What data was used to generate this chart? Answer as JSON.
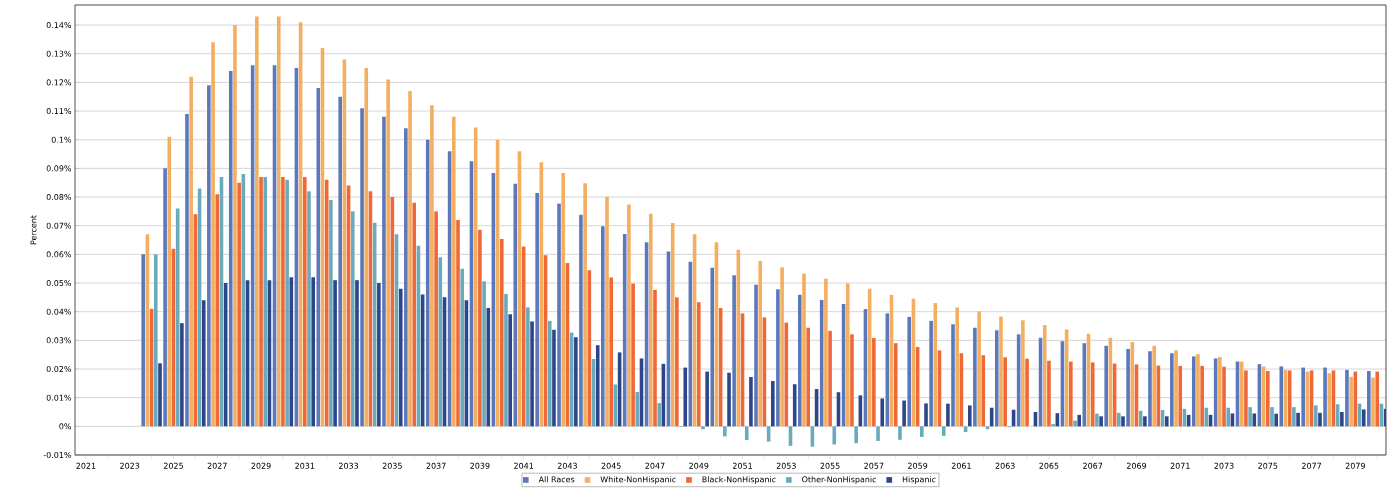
{
  "chart_data": {
    "type": "bar",
    "ylabel": "Percent",
    "categories": [
      "2021",
      null,
      "2023",
      null,
      "2025",
      null,
      "2027",
      null,
      "2029",
      null,
      "2031",
      null,
      "2033",
      null,
      "2035",
      null,
      "2037",
      null,
      "2039",
      null,
      "2041",
      null,
      "2043",
      null,
      "2045",
      null,
      "2047",
      null,
      "2049",
      null,
      "2051",
      null,
      "2053",
      null,
      "2055",
      null,
      "2057",
      null,
      "2059",
      null,
      "2061",
      null,
      "2063",
      null,
      "2065",
      null,
      "2067",
      null,
      "2069",
      null,
      "2071",
      null,
      "2073",
      null,
      "2075",
      null,
      "2077",
      null,
      "2079",
      null
    ],
    "series": [
      {
        "name": "All Races",
        "color": "#5b78bd",
        "values": [
          0,
          0,
          0,
          0.06,
          0.09,
          0.109,
          0.119,
          0.124,
          0.126,
          0.126,
          0.125,
          0.118,
          0.115,
          0.111,
          0.108,
          0.104,
          0.1,
          0.096,
          0.0925,
          0.0884,
          0.0846,
          0.0814,
          0.0777,
          0.0738,
          0.0698,
          0.0671,
          0.0642,
          0.061,
          0.0574,
          0.0553,
          0.0527,
          0.0494,
          0.0478,
          0.0459,
          0.0441,
          0.0427,
          0.0409,
          0.0394,
          0.0382,
          0.0368,
          0.0356,
          0.0344,
          0.0335,
          0.0321,
          0.0309,
          0.0297,
          0.029,
          0.0281,
          0.027,
          0.0262,
          0.0255,
          0.0244,
          0.0237,
          0.0226,
          0.0217,
          0.0209,
          0.0205,
          0.0205,
          0.0197,
          0.0193
        ]
      },
      {
        "name": "White-NonHispanic",
        "color": "#f3ae60",
        "values": [
          0,
          0,
          0,
          0.067,
          0.101,
          0.122,
          0.134,
          0.14,
          0.143,
          0.143,
          0.141,
          0.132,
          0.128,
          0.125,
          0.121,
          0.117,
          0.112,
          0.108,
          0.1043,
          0.0999,
          0.096,
          0.0921,
          0.0884,
          0.0848,
          0.0801,
          0.0774,
          0.0742,
          0.0709,
          0.067,
          0.0642,
          0.0616,
          0.0577,
          0.0555,
          0.0533,
          0.0515,
          0.0498,
          0.048,
          0.0458,
          0.0445,
          0.043,
          0.0415,
          0.0401,
          0.0383,
          0.037,
          0.0353,
          0.0338,
          0.0323,
          0.0309,
          0.0294,
          0.0281,
          0.0265,
          0.0252,
          0.0242,
          0.0226,
          0.0209,
          0.0197,
          0.0191,
          0.0185,
          0.0173,
          0.017
        ]
      },
      {
        "name": "Black-NonHispanic",
        "color": "#ee6838",
        "values": [
          0,
          0,
          0,
          0.041,
          0.062,
          0.074,
          0.081,
          0.085,
          0.087,
          0.087,
          0.087,
          0.086,
          0.084,
          0.082,
          0.08,
          0.078,
          0.075,
          0.072,
          0.0686,
          0.0654,
          0.0627,
          0.0597,
          0.057,
          0.0545,
          0.0519,
          0.0498,
          0.0476,
          0.045,
          0.0433,
          0.0413,
          0.0394,
          0.038,
          0.0362,
          0.0344,
          0.0333,
          0.0321,
          0.0308,
          0.029,
          0.0277,
          0.0265,
          0.0255,
          0.0248,
          0.0241,
          0.0236,
          0.0229,
          0.0226,
          0.0223,
          0.0219,
          0.0216,
          0.0212,
          0.0211,
          0.0211,
          0.0208,
          0.0195,
          0.0193,
          0.0195,
          0.0195,
          0.0195,
          0.0191,
          0.0191
        ]
      },
      {
        "name": "Other-NonHispanic",
        "color": "#6aaabd",
        "values": [
          0,
          0,
          0,
          0.06,
          0.076,
          0.083,
          0.087,
          0.088,
          0.087,
          0.086,
          0.082,
          0.079,
          0.075,
          0.071,
          0.067,
          0.063,
          0.059,
          0.055,
          0.0506,
          0.0462,
          0.0415,
          0.0368,
          0.0327,
          0.0235,
          0.0146,
          0.012,
          0.0081,
          -0.0002,
          -0.001,
          -0.0035,
          -0.0048,
          -0.0053,
          -0.0068,
          -0.0071,
          -0.0063,
          -0.0059,
          -0.0051,
          -0.0047,
          -0.0037,
          -0.0033,
          -0.002,
          -0.001,
          -0.0003,
          0,
          0.0008,
          0.002,
          0.0044,
          0.0047,
          0.0054,
          0.0057,
          0.0061,
          0.0065,
          0.0065,
          0.0067,
          0.0067,
          0.0067,
          0.0073,
          0.0077,
          0.0079,
          0.0079
        ]
      },
      {
        "name": "Hispanic",
        "color": "#2d4689",
        "values": [
          0,
          0,
          0,
          0.022,
          0.036,
          0.044,
          0.05,
          0.051,
          0.051,
          0.052,
          0.052,
          0.051,
          0.051,
          0.05,
          0.048,
          0.046,
          0.045,
          0.044,
          0.0413,
          0.0391,
          0.0366,
          0.0337,
          0.0311,
          0.0283,
          0.0258,
          0.0237,
          0.0218,
          0.0205,
          0.0191,
          0.0187,
          0.0172,
          0.0158,
          0.0147,
          0.013,
          0.0119,
          0.0108,
          0.0097,
          0.009,
          0.008,
          0.0079,
          0.0073,
          0.0065,
          0.0058,
          0.005,
          0.0046,
          0.004,
          0.0035,
          0.0035,
          0.0035,
          0.0035,
          0.004,
          0.004,
          0.0045,
          0.0045,
          0.0044,
          0.0047,
          0.0047,
          0.005,
          0.0059,
          0.0061
        ]
      }
    ],
    "ylim": [
      -0.01,
      0.147
    ],
    "yticks": [
      {
        "value": -0.01,
        "label": "-0.01%"
      },
      {
        "value": 0,
        "label": "0%"
      },
      {
        "value": 0.01,
        "label": "0.01%"
      },
      {
        "value": 0.02,
        "label": "0.02%"
      },
      {
        "value": 0.03,
        "label": "0.03%"
      },
      {
        "value": 0.04,
        "label": "0.04%"
      },
      {
        "value": 0.05,
        "label": "0.05%"
      },
      {
        "value": 0.06,
        "label": "0.06%"
      },
      {
        "value": 0.07,
        "label": "0.07%"
      },
      {
        "value": 0.08,
        "label": "0.08%"
      },
      {
        "value": 0.09,
        "label": "0.09%"
      },
      {
        "value": 0.1,
        "label": "0.1%"
      },
      {
        "value": 0.11,
        "label": "0.11%"
      },
      {
        "value": 0.12,
        "label": "0.12%"
      },
      {
        "value": 0.13,
        "label": "0.13%"
      },
      {
        "value": 0.14,
        "label": "0.14%"
      }
    ],
    "grid": "y",
    "legend": "bottom"
  }
}
